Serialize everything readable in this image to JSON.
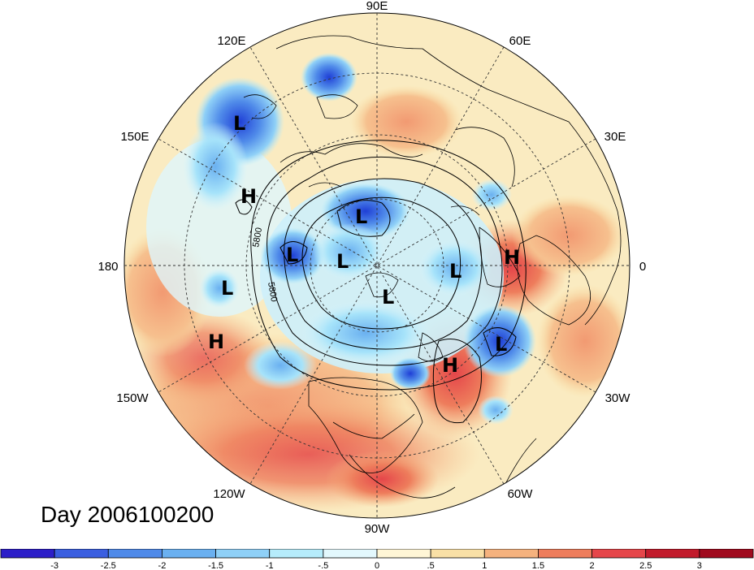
{
  "title": "Day 2006100200",
  "longitude_labels": {
    "e90": "90E",
    "e60": "60E",
    "e30": "30E",
    "zero": "0",
    "w30": "30W",
    "w60": "60W",
    "w90": "90W",
    "w120": "120W",
    "w150": "150W",
    "e180": "180",
    "e150": "150E",
    "e120": "120E"
  },
  "contour_labels": [
    "5800",
    "5800"
  ],
  "pressure_centers": [
    {
      "type": "L",
      "region": "east-asia-north"
    },
    {
      "type": "L",
      "region": "siberia-north"
    },
    {
      "type": "H",
      "region": "north-pacific"
    },
    {
      "type": "L",
      "region": "kamchatka"
    },
    {
      "type": "L",
      "region": "north-pole-east"
    },
    {
      "type": "L",
      "region": "arctic-siberia"
    },
    {
      "type": "L",
      "region": "barents"
    },
    {
      "type": "L",
      "region": "canadian-arctic"
    },
    {
      "type": "L",
      "region": "aleutian"
    },
    {
      "type": "H",
      "region": "gulf-of-alaska"
    },
    {
      "type": "H",
      "region": "europe"
    },
    {
      "type": "L",
      "region": "north-atlantic"
    },
    {
      "type": "H",
      "region": "western-atlantic"
    }
  ],
  "colorbar": {
    "labels": [
      "-3",
      "-2.5",
      "-2",
      "-1.5",
      "-1",
      "-.5",
      "0",
      ".5",
      "1",
      "1.5",
      "2",
      "2.5",
      "3"
    ],
    "colors": [
      "#2d1fc8",
      "#3b5fe0",
      "#4f8ae9",
      "#6ab0f0",
      "#8fd0f7",
      "#b6ecfb",
      "#e3f8fd",
      "#fff6d6",
      "#f9e0a6",
      "#f5b27e",
      "#ee7d5c",
      "#e5464a",
      "#c21b2c",
      "#a00a1e"
    ]
  }
}
